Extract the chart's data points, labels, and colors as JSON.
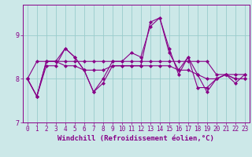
{
  "xlabel": "Windchill (Refroidissement éolien,°C)",
  "background_color": "#cce8e8",
  "line_color": "#880088",
  "grid_color": "#99cccc",
  "x": [
    0,
    1,
    2,
    3,
    4,
    5,
    6,
    7,
    8,
    9,
    10,
    11,
    12,
    13,
    14,
    15,
    16,
    17,
    18,
    19,
    20,
    21,
    22,
    23
  ],
  "series": [
    [
      8.0,
      7.6,
      8.3,
      8.3,
      8.7,
      8.5,
      8.2,
      7.7,
      7.9,
      8.3,
      8.3,
      8.3,
      8.3,
      9.3,
      9.4,
      8.6,
      8.2,
      8.5,
      8.1,
      7.7,
      8.0,
      8.1,
      8.0,
      8.0
    ],
    [
      8.0,
      7.6,
      8.4,
      8.4,
      8.3,
      8.3,
      8.2,
      8.2,
      8.2,
      8.3,
      8.3,
      8.3,
      8.3,
      8.3,
      8.3,
      8.3,
      8.2,
      8.2,
      8.1,
      8.0,
      8.0,
      8.1,
      8.0,
      8.0
    ],
    [
      8.0,
      7.6,
      8.4,
      8.4,
      8.7,
      8.5,
      8.2,
      7.7,
      8.0,
      8.4,
      8.4,
      8.6,
      8.5,
      9.2,
      9.4,
      8.7,
      8.1,
      8.5,
      7.8,
      7.8,
      8.0,
      8.1,
      7.9,
      8.1
    ],
    [
      8.0,
      8.4,
      8.4,
      8.4,
      8.4,
      8.4,
      8.4,
      8.4,
      8.4,
      8.4,
      8.4,
      8.4,
      8.4,
      8.4,
      8.4,
      8.4,
      8.4,
      8.4,
      8.4,
      8.4,
      8.1,
      8.1,
      8.1,
      8.1
    ]
  ],
  "ylim": [
    7.0,
    9.7
  ],
  "yticks": [
    7,
    8,
    9
  ],
  "xticks": [
    0,
    1,
    2,
    3,
    4,
    5,
    6,
    7,
    8,
    9,
    10,
    11,
    12,
    13,
    14,
    15,
    16,
    17,
    18,
    19,
    20,
    21,
    22,
    23
  ],
  "marker": "D",
  "markersize": 2.0,
  "linewidth": 0.8,
  "tick_fontsize": 5.5,
  "xlabel_fontsize": 6.5
}
